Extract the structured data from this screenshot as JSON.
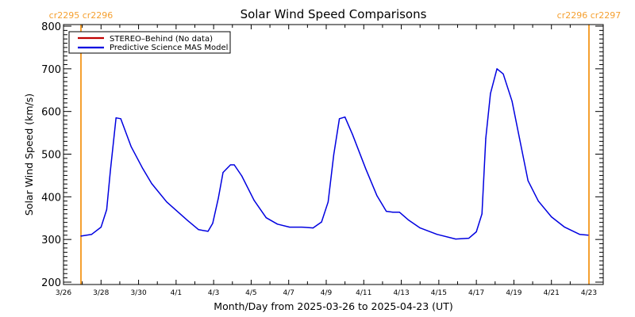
{
  "chart_data": {
    "type": "line",
    "title": "Solar Wind Speed Comparisons",
    "xlabel": "Month/Day from 2025-03-26 to 2025-04-23 (UT)",
    "ylabel": "Solar Wind Speed (km/s)",
    "x_units": "days since 2025-03-26 00:00 UT",
    "xlim": [
      0,
      28.76
    ],
    "ylim": [
      200,
      800
    ],
    "grid": false,
    "legend_position": "top-left",
    "y_ticks": [
      {
        "value": 200,
        "label": "200"
      },
      {
        "value": 300,
        "label": "300"
      },
      {
        "value": 400,
        "label": "400"
      },
      {
        "value": 500,
        "label": "500"
      },
      {
        "value": 600,
        "label": "600"
      },
      {
        "value": 700,
        "label": "700"
      },
      {
        "value": 800,
        "label": "800"
      }
    ],
    "x_ticks": [
      {
        "value": 0,
        "label": "3/26"
      },
      {
        "value": 2,
        "label": "3/28"
      },
      {
        "value": 4,
        "label": "3/30"
      },
      {
        "value": 6,
        "label": "4/1"
      },
      {
        "value": 8,
        "label": "4/3"
      },
      {
        "value": 10,
        "label": "4/5"
      },
      {
        "value": 12,
        "label": "4/7"
      },
      {
        "value": 14,
        "label": "4/9"
      },
      {
        "value": 16,
        "label": "4/11"
      },
      {
        "value": 18,
        "label": "4/13"
      },
      {
        "value": 20,
        "label": "4/15"
      },
      {
        "value": 22,
        "label": "4/17"
      },
      {
        "value": 24,
        "label": "4/19"
      },
      {
        "value": 26,
        "label": "4/21"
      },
      {
        "value": 28,
        "label": "4/23"
      }
    ],
    "carrington_markers": [
      {
        "x": 0.93,
        "label": "cr2295 cr2296",
        "color": "#f5a030"
      },
      {
        "x": 28.0,
        "label": "cr2296 cr2297",
        "color": "#f5a030"
      }
    ],
    "series": [
      {
        "name": "STEREO–Behind (No data)",
        "color": "#c00000",
        "x": [],
        "y": []
      },
      {
        "name": "Predictive Science MAS Model",
        "color": "#0000e0",
        "x": [
          0.93,
          1.5,
          2.0,
          2.3,
          2.5,
          2.8,
          3.05,
          3.6,
          4.2,
          4.7,
          5.5,
          6.6,
          7.2,
          7.7,
          7.95,
          8.25,
          8.5,
          8.9,
          9.1,
          9.5,
          10.15,
          10.8,
          11.4,
          12.05,
          12.7,
          13.3,
          13.75,
          14.1,
          14.4,
          14.7,
          15.0,
          15.4,
          16.1,
          16.7,
          17.2,
          17.55,
          17.9,
          18.4,
          19.0,
          19.9,
          20.9,
          21.6,
          22.0,
          22.3,
          22.5,
          22.75,
          23.1,
          23.43,
          23.9,
          24.3,
          24.75,
          25.3,
          26.0,
          26.7,
          27.5,
          27.96
        ],
        "y": [
          308,
          312,
          329,
          370,
          462,
          585,
          583,
          518,
          468,
          431,
          388,
          345,
          323,
          319,
          338,
          397,
          457,
          475,
          475,
          449,
          392,
          351,
          336,
          329,
          329,
          327,
          341,
          388,
          499,
          583,
          587,
          546,
          466,
          403,
          366,
          364,
          364,
          345,
          327,
          312,
          301,
          303,
          318,
          360,
          537,
          642,
          700,
          688,
          624,
          537,
          438,
          390,
          353,
          329,
          312,
          310
        ]
      }
    ]
  }
}
